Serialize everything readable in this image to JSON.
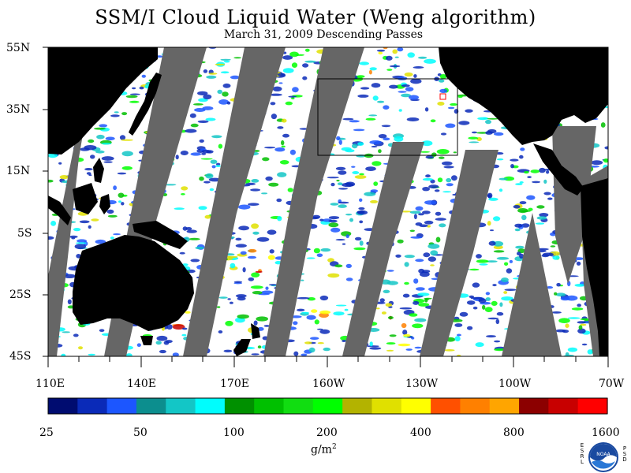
{
  "title": "SSM/I Cloud Liquid Water (Weng algorithm)",
  "subtitle": "March 31, 2009  Descending Passes",
  "lat_labels": [
    "55N",
    "35N",
    "15N",
    "5S",
    "25S",
    "45S"
  ],
  "lon_labels": [
    "110E",
    "140E",
    "170E",
    "160W",
    "130W",
    "100W",
    "70W"
  ],
  "colorbar": {
    "colors": [
      "#000c70",
      "#0a2ab8",
      "#1c56ff",
      "#0c8e8e",
      "#13c6c6",
      "#00fdfd",
      "#009000",
      "#00c000",
      "#11dd11",
      "#00ff00",
      "#b3b300",
      "#e0e000",
      "#ffff00",
      "#ff5000",
      "#ff8000",
      "#ffa500",
      "#8c0000",
      "#c80000",
      "#ff0000"
    ],
    "tick_labels": [
      "25",
      "50",
      "100",
      "200",
      "400",
      "800",
      "1600"
    ]
  },
  "units": {
    "base": "g/m",
    "exp": "2"
  },
  "logo": {
    "name": "noaa-logo",
    "text": "NOAA",
    "left_letters": "ESRL",
    "right_letters": "PSD"
  },
  "colors": {
    "land": "#000000",
    "no_data": "#666666",
    "ocean_clear": "#ffffff",
    "box": "#000000",
    "red_marker": "#ff0000"
  }
}
